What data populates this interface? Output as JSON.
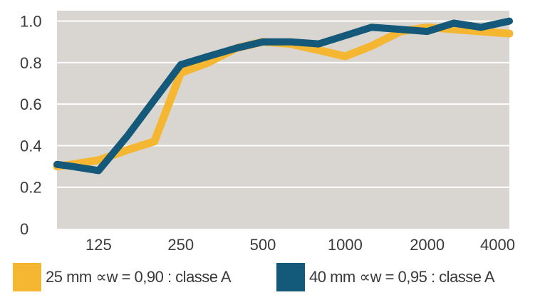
{
  "chart_data": {
    "type": "line",
    "x_scale": "log",
    "x_tick_labels": [
      "125",
      "250",
      "500",
      "1000",
      "2000",
      "4000"
    ],
    "x_ticks": [
      125,
      250,
      500,
      1000,
      2000,
      4000
    ],
    "y_tick_labels": [
      "0",
      "0.2",
      "0.4",
      "0.6",
      "0.8",
      "1.0"
    ],
    "y_ticks": [
      0,
      0.2,
      0.4,
      0.6,
      0.8,
      1.0
    ],
    "xlim": [
      88,
      4000
    ],
    "ylim": [
      0,
      1.05
    ],
    "grid": "horizontal",
    "legend_position": "bottom",
    "series": [
      {
        "name": "25 mm ∝w = 0,90 : classe A",
        "color": "#f5b731",
        "x": [
          88,
          100,
          125,
          160,
          200,
          250,
          315,
          400,
          500,
          630,
          800,
          1000,
          1250,
          1600,
          2000,
          2500,
          3150,
          4000
        ],
        "values": [
          0.3,
          0.31,
          0.33,
          0.38,
          0.42,
          0.75,
          0.8,
          0.87,
          0.9,
          0.89,
          0.86,
          0.83,
          0.88,
          0.95,
          0.97,
          0.96,
          0.95,
          0.94
        ]
      },
      {
        "name": "40 mm ∝w = 0,95 : classe A",
        "color": "#14587a",
        "x": [
          88,
          100,
          125,
          160,
          200,
          250,
          315,
          400,
          500,
          630,
          800,
          1000,
          1250,
          1600,
          2000,
          2500,
          3150,
          4000
        ],
        "values": [
          0.31,
          0.3,
          0.28,
          0.45,
          0.62,
          0.79,
          0.83,
          0.87,
          0.9,
          0.9,
          0.89,
          0.93,
          0.97,
          0.96,
          0.95,
          0.99,
          0.97,
          1.0
        ]
      }
    ]
  }
}
